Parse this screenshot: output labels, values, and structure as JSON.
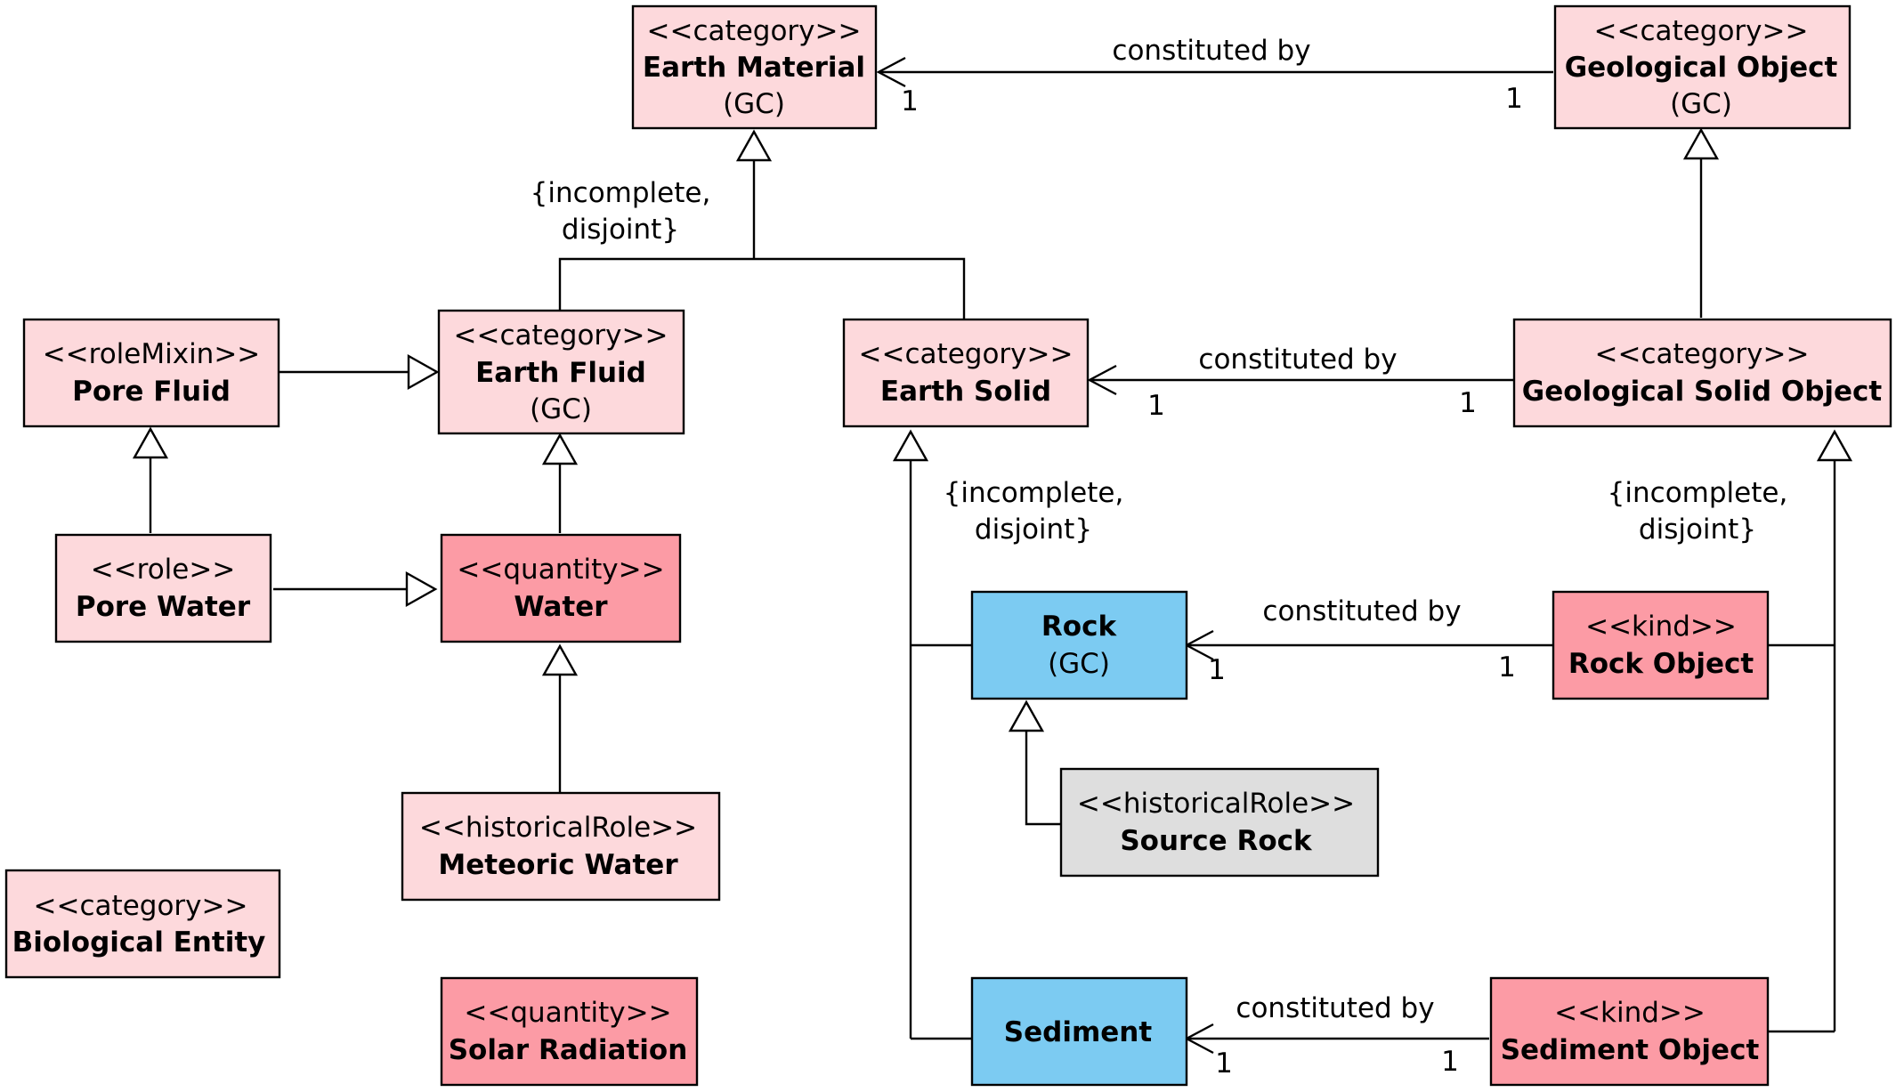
{
  "colors": {
    "category": "#fdd9dc",
    "quantity_kind": "#fc9ba5",
    "rock": "#7ccbf2",
    "source_rock": "#dedede"
  },
  "nodes": {
    "earth_material": {
      "stereotype": "<<category>>",
      "name": "Earth Material",
      "note": "(GC)"
    },
    "geological_object": {
      "stereotype": "<<category>>",
      "name": "Geological Object",
      "note": "(GC)"
    },
    "pore_fluid": {
      "stereotype": "<<roleMixin>>",
      "name": "Pore Fluid"
    },
    "earth_fluid": {
      "stereotype": "<<category>>",
      "name": "Earth Fluid",
      "note": "(GC)"
    },
    "earth_solid": {
      "stereotype": "<<category>>",
      "name": "Earth Solid"
    },
    "geological_solid_object": {
      "stereotype": "<<category>>",
      "name": "Geological Solid Object"
    },
    "pore_water": {
      "stereotype": "<<role>>",
      "name": "Pore Water"
    },
    "water": {
      "stereotype": "<<quantity>>",
      "name": "Water"
    },
    "rock": {
      "name": "Rock",
      "note": "(GC)"
    },
    "rock_object": {
      "stereotype": "<<kind>>",
      "name": "Rock Object"
    },
    "source_rock": {
      "stereotype": "<<historicalRole>>",
      "name": "Source Rock"
    },
    "meteoric_water": {
      "stereotype": "<<historicalRole>>",
      "name": "Meteoric Water"
    },
    "biological_entity": {
      "stereotype": "<<category>>",
      "name": "Biological Entity"
    },
    "solar_radiation": {
      "stereotype": "<<quantity>>",
      "name": "Solar Radiation"
    },
    "sediment": {
      "name": "Sediment"
    },
    "sediment_object": {
      "stereotype": "<<kind>>",
      "name": "Sediment Object"
    }
  },
  "associations": {
    "material": {
      "label": "constituted by",
      "target_mult": "1",
      "source_mult": "1"
    },
    "solid": {
      "label": "constituted by",
      "target_mult": "1",
      "source_mult": "1"
    },
    "rock": {
      "label": "constituted by",
      "target_mult": "1",
      "source_mult": "1"
    },
    "sediment": {
      "label": "constituted by",
      "target_mult": "1",
      "source_mult": "1"
    }
  },
  "constraints": {
    "earth_material": [
      "{incomplete,",
      "disjoint}"
    ],
    "earth_solid": [
      "{incomplete,",
      "disjoint}"
    ],
    "geological_solid_object": [
      "{incomplete,",
      "disjoint}"
    ]
  }
}
